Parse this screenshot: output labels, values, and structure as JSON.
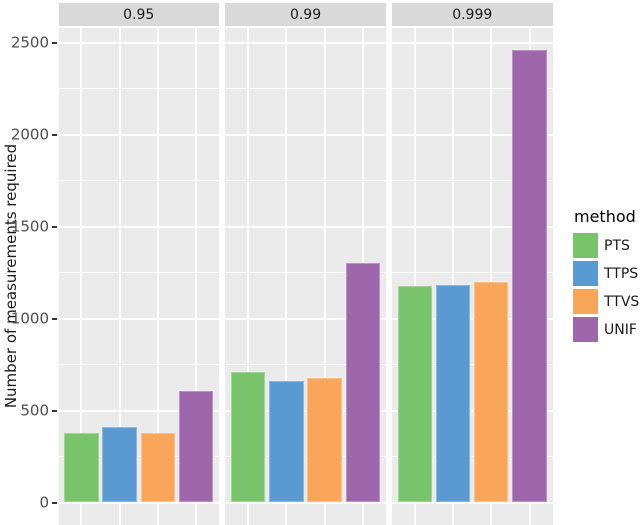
{
  "figure_colors": {
    "panel_background": "#ebebeb",
    "strip_background": "#d9d9d9",
    "gridline": "#ffffff",
    "tick_text": "#4d4d4d",
    "text": "#1a1a1a"
  },
  "legend": {
    "title": "method",
    "entries": [
      {
        "label": "PTS",
        "color": "#79c36a"
      },
      {
        "label": "TTPS",
        "color": "#599ad3"
      },
      {
        "label": "TTVS",
        "color": "#f9a65a"
      },
      {
        "label": "UNIF",
        "color": "#9e66ab"
      }
    ]
  },
  "chart_data": {
    "type": "bar",
    "title": "",
    "facets": [
      "0.95",
      "0.99",
      "0.999"
    ],
    "categories": [
      "PTS",
      "TTPS",
      "TTVS",
      "UNIF"
    ],
    "series": [
      {
        "facet": "0.95",
        "values": [
          380,
          410,
          380,
          605
        ]
      },
      {
        "facet": "0.99",
        "values": [
          710,
          660,
          675,
          1300
        ]
      },
      {
        "facet": "0.999",
        "values": [
          1175,
          1180,
          1200,
          2460
        ]
      }
    ],
    "xlabel": "",
    "ylabel": "Number of measurements required",
    "y_ticks": [
      0,
      500,
      1000,
      1500,
      2000,
      2500
    ],
    "y_minor_ticks": [
      250,
      750,
      1250,
      1750,
      2250
    ],
    "ylim": [
      0,
      2500
    ],
    "grid": true,
    "legend_position": "right",
    "legend_title": "method"
  }
}
